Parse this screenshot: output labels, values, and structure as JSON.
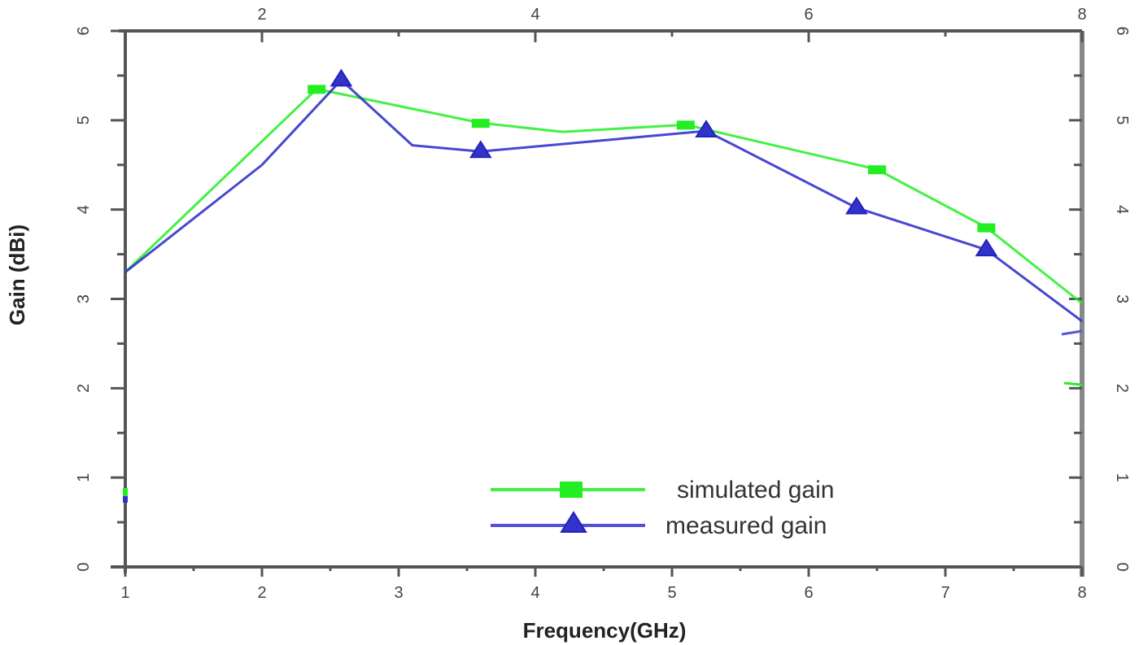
{
  "chart_data": {
    "type": "line",
    "title": "",
    "xlabel": "Frequency(GHz)",
    "ylabel": "Gain (dBi)",
    "xlim": [
      1,
      8
    ],
    "ylim": [
      0,
      6
    ],
    "x_ticks": [
      1,
      2,
      3,
      4,
      5,
      6,
      7,
      8
    ],
    "x_minor_ticks": [
      1.5,
      2.5,
      3.5,
      4.5,
      5.5,
      6.5,
      7.5
    ],
    "y_ticks": [
      0,
      1,
      2,
      3,
      4,
      5,
      6
    ],
    "y_minor_ticks": [
      0.5,
      1.5,
      2.5,
      3.5,
      4.5,
      5.5
    ],
    "top_axis_ticks": [
      2,
      4,
      6,
      8
    ],
    "right_axis_ticks": [
      0,
      1,
      2,
      3,
      4,
      5,
      6
    ],
    "grid": false,
    "legend_position": "lower right",
    "series": [
      {
        "name": "simulated gain",
        "color": "#22ee22",
        "marker": "square",
        "x": [
          1.0,
          2.4,
          3.6,
          4.2,
          5.1,
          6.5,
          7.3,
          8.0
        ],
        "y": [
          3.3,
          5.35,
          4.97,
          4.87,
          4.95,
          4.45,
          3.8,
          2.95
        ],
        "marker_x": [
          2.4,
          3.6,
          5.1,
          6.5,
          7.3
        ]
      },
      {
        "name": "measured gain",
        "color": "#3333cc",
        "marker": "triangle",
        "x": [
          1.0,
          2.0,
          2.58,
          3.1,
          3.6,
          5.25,
          6.35,
          7.3,
          8.0
        ],
        "y": [
          3.3,
          4.5,
          5.45,
          4.72,
          4.65,
          4.88,
          4.02,
          3.55,
          2.75
        ],
        "marker_x": [
          2.58,
          3.6,
          5.25,
          6.35,
          7.3
        ]
      }
    ]
  },
  "legend": {
    "items": [
      {
        "label": "simulated gain"
      },
      {
        "label": "measured gain"
      }
    ]
  },
  "axes": {
    "x_title": "Frequency(GHz)",
    "y_title": "Gain (dBi)"
  }
}
